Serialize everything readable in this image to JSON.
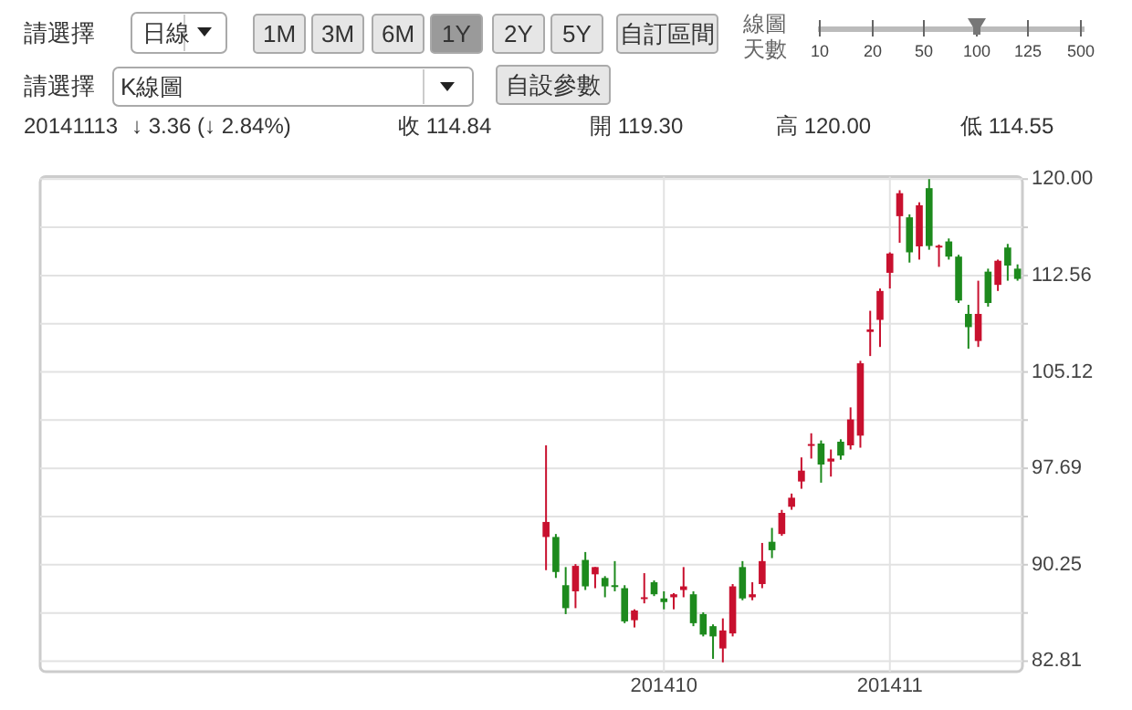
{
  "chart_data": {
    "type": "candlestick",
    "annotations": [
      "請選擇",
      "日線",
      "1M",
      "3M",
      "6M",
      "1Y",
      "2Y",
      "5Y",
      "自訂區間",
      "線圖",
      "天數",
      "10",
      "20",
      "50",
      "100",
      "125",
      "500",
      "請選擇",
      "K線圖",
      "自設參數",
      "20141113",
      "↓ 3.36 (↓ 2.84%)",
      "收 114.84",
      "開 119.30",
      "高 120.00",
      "低 114.55"
    ],
    "categories": [
      null,
      null,
      null,
      null,
      null,
      null,
      null,
      null,
      null,
      null,
      null,
      null,
      null,
      null,
      null,
      null,
      null,
      null,
      null,
      null,
      null,
      null,
      null,
      null,
      null,
      null,
      null,
      null,
      null,
      null,
      null,
      null,
      null,
      null,
      null,
      null,
      null,
      null,
      null,
      null,
      null,
      null,
      null,
      null,
      null,
      null,
      null,
      null,
      null,
      null,
      null,
      null,
      null,
      null,
      null,
      null,
      null,
      null,
      null,
      null,
      null,
      null,
      null,
      "201410",
      null,
      null,
      null,
      null,
      null,
      null,
      null,
      null,
      null,
      null,
      null,
      null,
      null,
      null,
      null,
      null,
      null,
      null,
      null,
      null,
      null,
      null,
      "201411",
      null,
      null,
      null,
      null,
      null,
      null,
      null,
      null,
      null,
      null,
      null,
      null,
      null
    ],
    "ohlc": [
      null,
      null,
      null,
      null,
      null,
      null,
      null,
      null,
      null,
      null,
      null,
      null,
      null,
      null,
      null,
      null,
      null,
      null,
      null,
      null,
      null,
      null,
      null,
      null,
      null,
      null,
      null,
      null,
      null,
      null,
      null,
      null,
      null,
      null,
      null,
      null,
      null,
      null,
      null,
      null,
      null,
      null,
      null,
      null,
      null,
      null,
      null,
      null,
      null,
      null,
      null,
      [
        92.39,
        99.46,
        89.83,
        93.55
      ],
      [
        92.39,
        92.62,
        89.23,
        89.69
      ],
      [
        88.67,
        90.07,
        86.44,
        86.9
      ],
      [
        88.2,
        90.3,
        86.9,
        90.16
      ],
      [
        90.62,
        91.23,
        88.3,
        88.58
      ],
      [
        89.51,
        90.07,
        88.44,
        90.07
      ],
      [
        89.23,
        89.37,
        87.74,
        88.58
      ],
      [
        88.67,
        90.53,
        88.2,
        88.53
      ],
      [
        88.44,
        88.67,
        85.74,
        85.88
      ],
      [
        85.97,
        86.81,
        85.41,
        86.72
      ],
      [
        87.6,
        89.6,
        87.27,
        87.74
      ],
      [
        88.9,
        89.04,
        87.83,
        87.97
      ],
      [
        87.65,
        88.2,
        86.81,
        87.37
      ],
      [
        87.74,
        88.06,
        86.81,
        87.97
      ],
      [
        88.3,
        90.07,
        87.74,
        88.58
      ],
      [
        87.97,
        88.2,
        85.51,
        85.74
      ],
      [
        86.44,
        86.58,
        84.72,
        84.86
      ],
      [
        85.51,
        85.65,
        82.99,
        84.72
      ],
      [
        83.79,
        86.11,
        82.72,
        85.18
      ],
      [
        84.95,
        88.76,
        84.72,
        88.58
      ],
      [
        90.07,
        90.53,
        87.51,
        87.65
      ],
      [
        87.74,
        88.9,
        87.51,
        87.97
      ],
      [
        88.76,
        91.93,
        88.44,
        90.53
      ],
      [
        92.02,
        93.09,
        90.76,
        91.37
      ],
      [
        92.62,
        94.48,
        92.48,
        94.25
      ],
      [
        94.72,
        95.74,
        94.49,
        95.42
      ],
      [
        96.67,
        98.53,
        96.11,
        97.51
      ],
      [
        99.46,
        100.39,
        98.44,
        99.56
      ],
      [
        99.6,
        99.84,
        96.58,
        97.98
      ],
      [
        98.21,
        99.14,
        97.05,
        98.44
      ],
      [
        99.74,
        99.93,
        98.35,
        98.67
      ],
      [
        99.46,
        102.39,
        99.14,
        101.46
      ],
      [
        100.21,
        105.98,
        99.28,
        105.79
      ],
      [
        108.21,
        109.84,
        106.35,
        108.4
      ],
      [
        109.14,
        111.56,
        107.05,
        111.37
      ],
      [
        112.77,
        114.35,
        111.56,
        114.26
      ],
      [
        117.14,
        119.14,
        115.09,
        118.91
      ],
      [
        117.05,
        117.28,
        113.56,
        114.35
      ],
      [
        114.81,
        118.21,
        113.79,
        117.98
      ],
      [
        119.3,
        120.0,
        114.55,
        114.84
      ],
      [
        114.72,
        114.95,
        113.23,
        114.86
      ],
      [
        115.19,
        115.42,
        113.79,
        114.02
      ],
      [
        114.02,
        114.16,
        110.44,
        110.63
      ],
      [
        109.6,
        110.3,
        106.91,
        108.58
      ],
      [
        107.51,
        112.16,
        107.05,
        109.6
      ],
      [
        112.86,
        113.09,
        110.16,
        110.44
      ],
      [
        111.84,
        113.79,
        111.37,
        113.7
      ],
      [
        114.72,
        115.0,
        112.16,
        113.33
      ],
      [
        113.09,
        113.42,
        112.16,
        112.3
      ]
    ],
    "ylim": [
      82.0,
      120.2
    ],
    "yticks": [
      82.81,
      {
        "value": 86.53,
        "label": null
      },
      90.25,
      {
        "value": 93.97,
        "label": null
      },
      97.69,
      {
        "value": 101.41,
        "label": null
      },
      105.12,
      {
        "value": 108.84,
        "label": null
      },
      112.56,
      {
        "value": 116.28,
        "label": null
      },
      {
        "value": 120.0,
        "label": "120.00"
      }
    ],
    "grid": true
  }
}
